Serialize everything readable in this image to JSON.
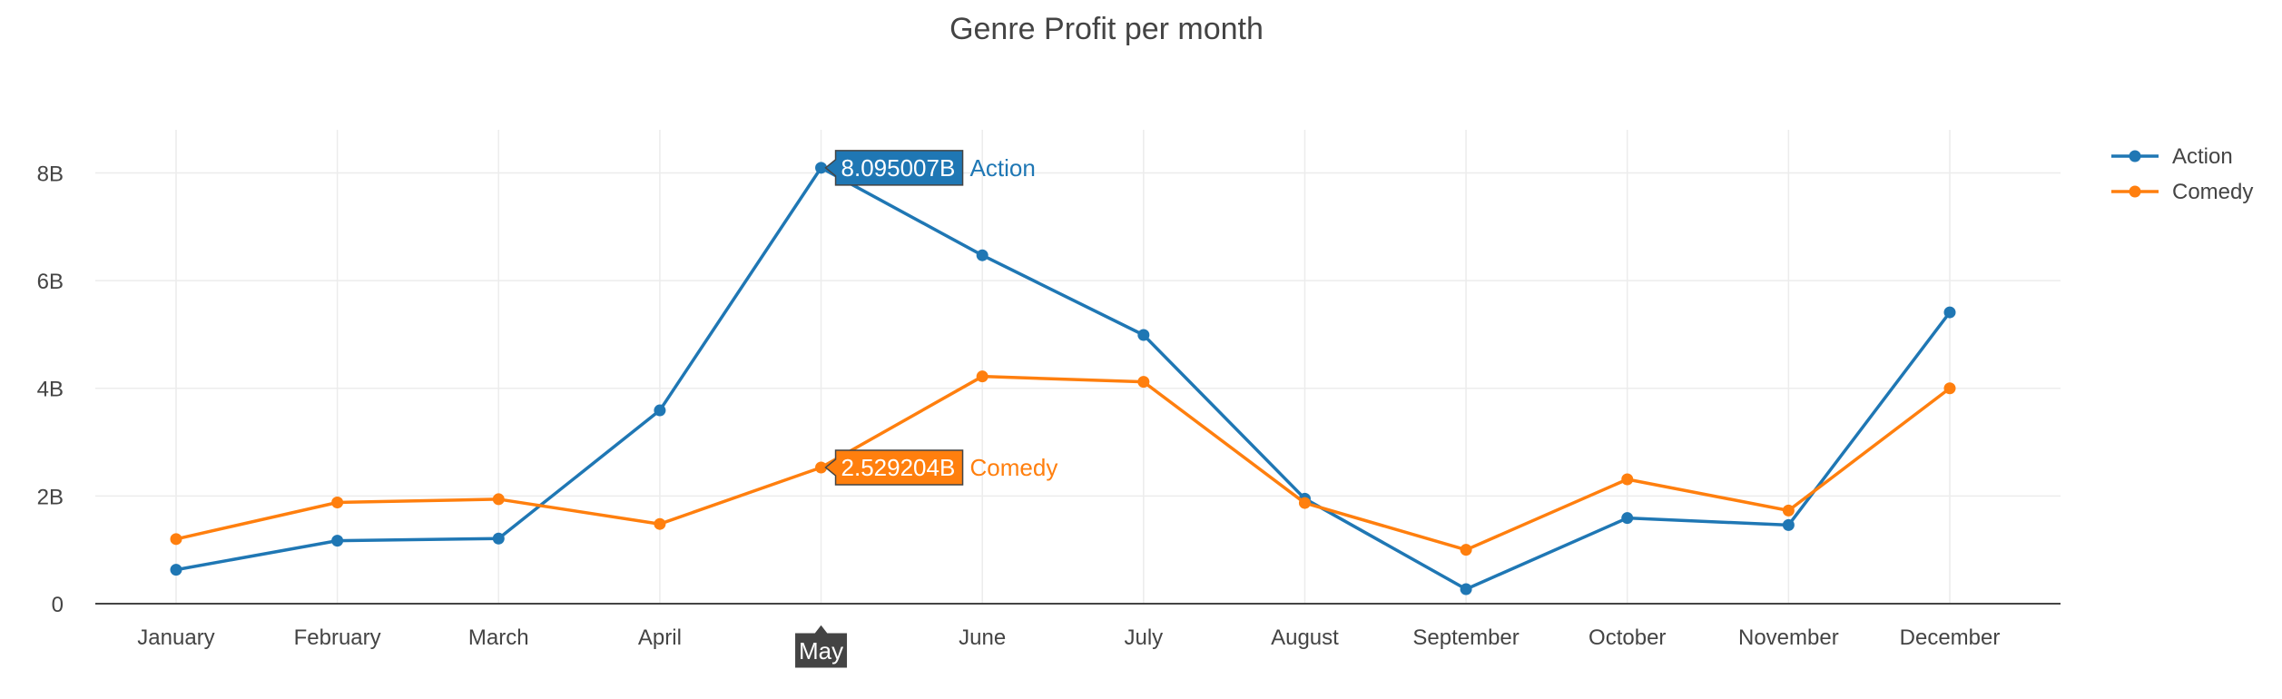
{
  "chart_data": {
    "type": "line",
    "title": "Genre Profit per month",
    "xlabel": "",
    "ylabel": "",
    "categories": [
      "January",
      "February",
      "March",
      "April",
      "May",
      "June",
      "July",
      "August",
      "September",
      "October",
      "November",
      "December"
    ],
    "ylim": [
      0,
      8.8
    ],
    "y_ticks": [
      0,
      2,
      4,
      6,
      8
    ],
    "y_tick_labels": [
      "0",
      "2B",
      "4B",
      "6B",
      "8B"
    ],
    "grid": true,
    "legend": "top-right",
    "series": [
      {
        "name": "Action",
        "color": "#1f77b4",
        "values": [
          0.63,
          1.17,
          1.21,
          3.59,
          8.095007,
          6.47,
          4.99,
          1.95,
          0.27,
          1.59,
          1.46,
          5.41
        ]
      },
      {
        "name": "Comedy",
        "color": "#ff7f0e",
        "values": [
          1.2,
          1.88,
          1.94,
          1.48,
          2.529204,
          4.22,
          4.12,
          1.87,
          1.0,
          2.31,
          1.73,
          4.0
        ]
      }
    ],
    "hover": {
      "category": "May",
      "labels": [
        {
          "series": "Action",
          "value_label": "8.095007B",
          "name": "Action",
          "color": "#1f77b4"
        },
        {
          "series": "Comedy",
          "value_label": "2.529204B",
          "name": "Comedy",
          "color": "#ff7f0e"
        }
      ]
    }
  }
}
